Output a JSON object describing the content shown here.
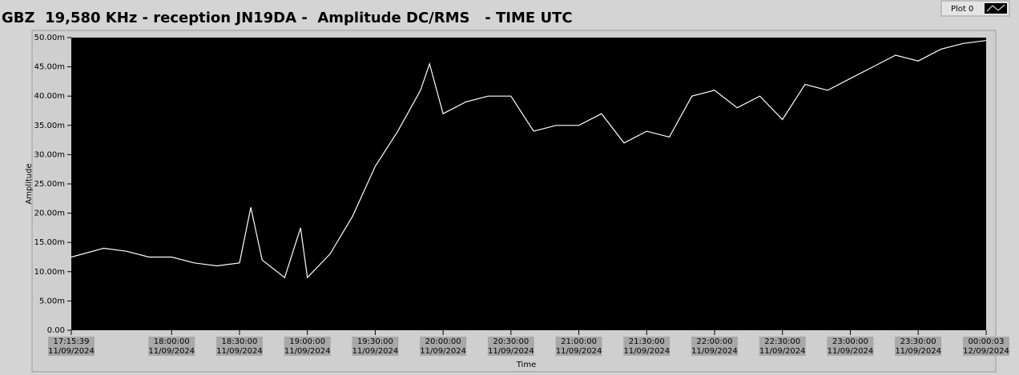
{
  "chart_data": {
    "type": "line",
    "title": "GBZ  19,580 KHz - reception JN19DA -  Amplitude DC/RMS   - TIME UTC",
    "x_label": "Time",
    "y_label": "Amplitude",
    "x": [
      "2024-09-11T17:15:39",
      "2024-09-11T17:30:00",
      "2024-09-11T17:40:00",
      "2024-09-11T17:50:00",
      "2024-09-11T18:00:00",
      "2024-09-11T18:10:00",
      "2024-09-11T18:20:00",
      "2024-09-11T18:30:00",
      "2024-09-11T18:35:00",
      "2024-09-11T18:40:00",
      "2024-09-11T18:50:00",
      "2024-09-11T18:57:00",
      "2024-09-11T19:00:00",
      "2024-09-11T19:10:00",
      "2024-09-11T19:20:00",
      "2024-09-11T19:30:00",
      "2024-09-11T19:40:00",
      "2024-09-11T19:50:00",
      "2024-09-11T19:54:00",
      "2024-09-11T20:00:00",
      "2024-09-11T20:10:00",
      "2024-09-11T20:20:00",
      "2024-09-11T20:30:00",
      "2024-09-11T20:40:00",
      "2024-09-11T20:50:00",
      "2024-09-11T21:00:00",
      "2024-09-11T21:10:00",
      "2024-09-11T21:20:00",
      "2024-09-11T21:30:00",
      "2024-09-11T21:40:00",
      "2024-09-11T21:50:00",
      "2024-09-11T22:00:00",
      "2024-09-11T22:10:00",
      "2024-09-11T22:20:00",
      "2024-09-11T22:30:00",
      "2024-09-11T22:40:00",
      "2024-09-11T22:50:00",
      "2024-09-11T23:00:00",
      "2024-09-11T23:10:00",
      "2024-09-11T23:20:00",
      "2024-09-11T23:30:00",
      "2024-09-11T23:40:00",
      "2024-09-11T23:50:00",
      "2024-09-12T00:00:03"
    ],
    "series": [
      {
        "name": "Plot 0",
        "color": "#ffffff",
        "values": [
          0.0125,
          0.014,
          0.0135,
          0.0125,
          0.0125,
          0.0115,
          0.011,
          0.0115,
          0.021,
          0.012,
          0.009,
          0.0175,
          0.009,
          0.013,
          0.0195,
          0.028,
          0.034,
          0.041,
          0.0455,
          0.037,
          0.039,
          0.04,
          0.04,
          0.034,
          0.035,
          0.035,
          0.037,
          0.032,
          0.034,
          0.033,
          0.04,
          0.041,
          0.038,
          0.04,
          0.036,
          0.042,
          0.041,
          0.043,
          0.045,
          0.047,
          0.046,
          0.048,
          0.049,
          0.0495
        ]
      }
    ],
    "xlim": [
      "2024-09-11T17:15:39",
      "2024-09-12T00:00:03"
    ],
    "xticks": [
      {
        "value": "2024-09-11T17:15:39",
        "label": [
          "17:15:39",
          "11/09/2024"
        ]
      },
      {
        "value": "2024-09-11T18:00:00",
        "label": [
          "18:00:00",
          "11/09/2024"
        ]
      },
      {
        "value": "2024-09-11T18:30:00",
        "label": [
          "18:30:00",
          "11/09/2024"
        ]
      },
      {
        "value": "2024-09-11T19:00:00",
        "label": [
          "19:00:00",
          "11/09/2024"
        ]
      },
      {
        "value": "2024-09-11T19:30:00",
        "label": [
          "19:30:00",
          "11/09/2024"
        ]
      },
      {
        "value": "2024-09-11T20:00:00",
        "label": [
          "20:00:00",
          "11/09/2024"
        ]
      },
      {
        "value": "2024-09-11T20:30:00",
        "label": [
          "20:30:00",
          "11/09/2024"
        ]
      },
      {
        "value": "2024-09-11T21:00:00",
        "label": [
          "21:00:00",
          "11/09/2024"
        ]
      },
      {
        "value": "2024-09-11T21:30:00",
        "label": [
          "21:30:00",
          "11/09/2024"
        ]
      },
      {
        "value": "2024-09-11T22:00:00",
        "label": [
          "22:00:00",
          "11/09/2024"
        ]
      },
      {
        "value": "2024-09-11T22:30:00",
        "label": [
          "22:30:00",
          "11/09/2024"
        ]
      },
      {
        "value": "2024-09-11T23:00:00",
        "label": [
          "23:00:00",
          "11/09/2024"
        ]
      },
      {
        "value": "2024-09-11T23:30:00",
        "label": [
          "23:30:00",
          "11/09/2024"
        ]
      },
      {
        "value": "2024-09-12T00:00:03",
        "label": [
          "00:00:03",
          "12/09/2024"
        ]
      }
    ],
    "ylim": [
      0,
      0.05
    ],
    "yticks": [
      {
        "value": 0,
        "label": "0.00"
      },
      {
        "value": 0.005,
        "label": "5.00m"
      },
      {
        "value": 0.01,
        "label": "10.00m"
      },
      {
        "value": 0.015,
        "label": "15.00m"
      },
      {
        "value": 0.02,
        "label": "20.00m"
      },
      {
        "value": 0.025,
        "label": "25.00m"
      },
      {
        "value": 0.03,
        "label": "30.00m"
      },
      {
        "value": 0.035,
        "label": "35.00m"
      },
      {
        "value": 0.04,
        "label": "40.00m"
      },
      {
        "value": 0.045,
        "label": "45.00m"
      },
      {
        "value": 0.05,
        "label": "50.00m"
      }
    ],
    "background": "#000000"
  }
}
